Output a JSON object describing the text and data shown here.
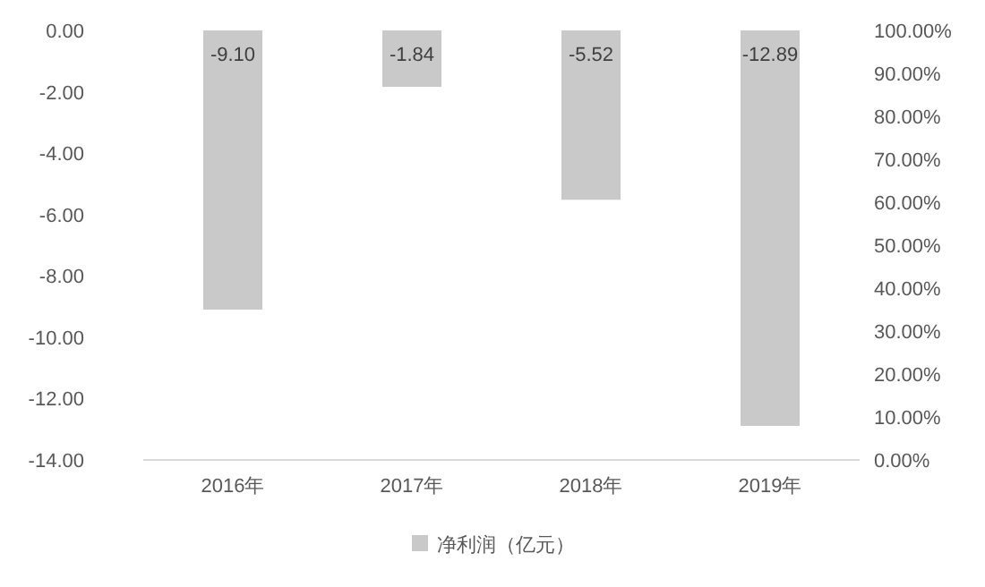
{
  "chart_data": {
    "type": "bar",
    "categories": [
      "2016年",
      "2017年",
      "2018年",
      "2019年"
    ],
    "series": [
      {
        "name": "净利润（亿元）",
        "color": "#c9c9c9",
        "values": [
          -9.1,
          -1.84,
          -5.52,
          -12.89
        ],
        "value_labels": [
          "-9.10",
          "-1.84",
          "-5.52",
          "-12.89"
        ]
      }
    ],
    "ylim": [
      -14,
      0
    ],
    "yticks": [
      {
        "value": 0,
        "label": "0.00"
      },
      {
        "value": -2,
        "label": "-2.00"
      },
      {
        "value": -4,
        "label": "-4.00"
      },
      {
        "value": -6,
        "label": "-6.00"
      },
      {
        "value": -8,
        "label": "-8.00"
      },
      {
        "value": -10,
        "label": "-10.00"
      },
      {
        "value": -12,
        "label": "-12.00"
      },
      {
        "value": -14,
        "label": "-14.00"
      }
    ],
    "y2lim": [
      0,
      100
    ],
    "y2ticks": [
      {
        "value": 0,
        "label": "0.00%"
      },
      {
        "value": 10,
        "label": "10.00%"
      },
      {
        "value": 20,
        "label": "20.00%"
      },
      {
        "value": 30,
        "label": "30.00%"
      },
      {
        "value": 40,
        "label": "40.00%"
      },
      {
        "value": 50,
        "label": "50.00%"
      },
      {
        "value": 60,
        "label": "60.00%"
      },
      {
        "value": 70,
        "label": "70.00%"
      },
      {
        "value": 80,
        "label": "80.00%"
      },
      {
        "value": 90,
        "label": "90.00%"
      },
      {
        "value": 100,
        "label": "100.00%"
      }
    ],
    "grid": false,
    "legend": "bottom"
  }
}
